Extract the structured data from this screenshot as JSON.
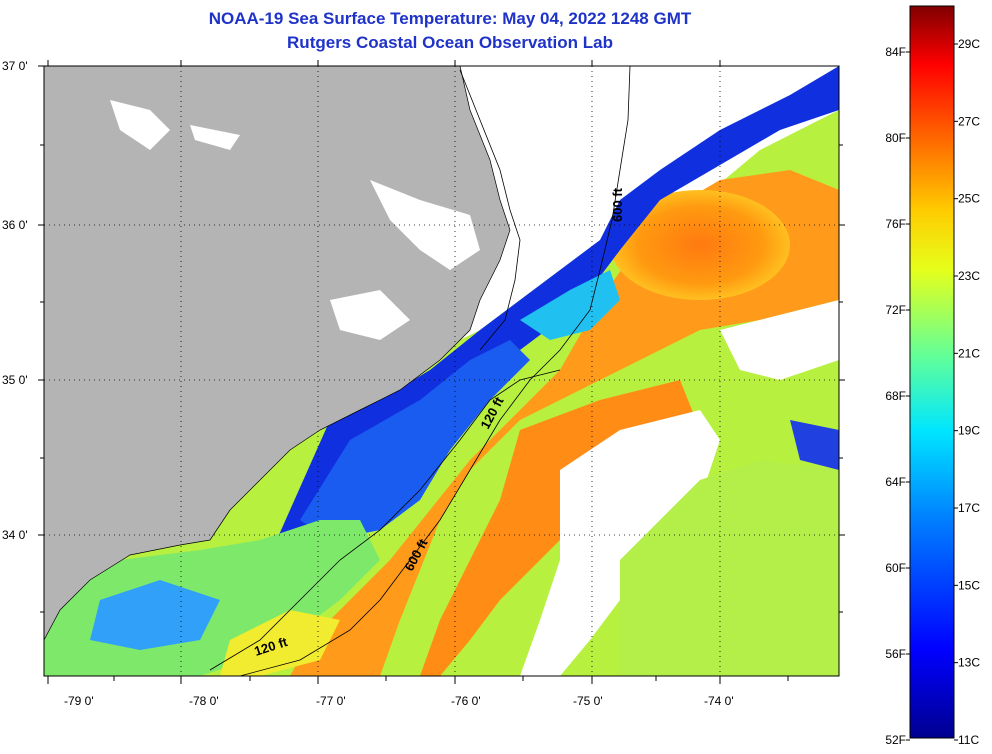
{
  "title": {
    "line1": "NOAA-19 Sea Surface Temperature:  May 04, 2022 1248 GMT",
    "line2": "Rutgers Coastal Ocean Observation Lab"
  },
  "colors": {
    "title": "#1f33c8",
    "land": "#b4b4b4",
    "cloud": "#ffffff"
  },
  "map": {
    "lat_ticks": [
      "37 0'",
      "36 0'",
      "35 0'",
      "34 0'"
    ],
    "lon_ticks": [
      "-79 0'",
      "-78 0'",
      "-77 0'",
      "-76 0'",
      "-75 0'",
      "-74 0'"
    ],
    "isobath_labels": [
      {
        "text": "600 ft"
      },
      {
        "text": "120 ft"
      },
      {
        "text": "600 ft"
      },
      {
        "text": "120 ft"
      }
    ]
  },
  "colorbar": {
    "fahrenheit_labels": [
      "84F",
      "80F",
      "76F",
      "72F",
      "68F",
      "64F",
      "60F",
      "56F",
      "52F"
    ],
    "celsius_labels": [
      "29C",
      "27C",
      "25C",
      "23C",
      "21C",
      "19C",
      "17C",
      "15C",
      "13C",
      "11C"
    ],
    "range_c": [
      11,
      30
    ]
  }
}
